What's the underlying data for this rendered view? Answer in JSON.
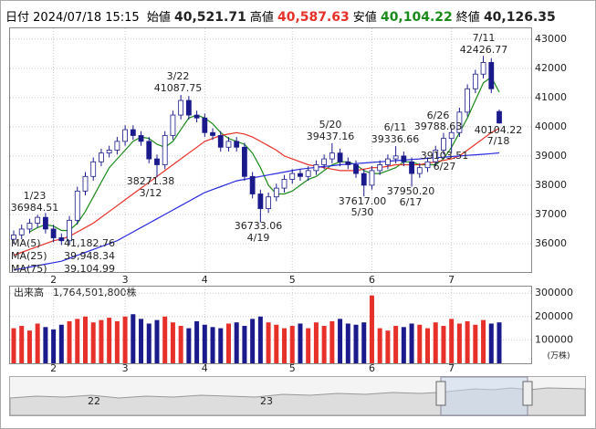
{
  "header": {
    "date_label": "日付",
    "date": "2024/07/18 15:15",
    "fields": [
      {
        "label": "始値",
        "value": "40,521.71",
        "color": "#222222"
      },
      {
        "label": "高値",
        "value": "40,587.63",
        "color": "#e8302a"
      },
      {
        "label": "安値",
        "value": "40,104.22",
        "color": "#1a8a1a"
      },
      {
        "label": "終値",
        "value": "40,126.35",
        "color": "#222222"
      }
    ]
  },
  "chart_data": {
    "type": "candlestick",
    "categories": [
      null,
      null,
      null,
      null,
      null,
      "2",
      null,
      null,
      null,
      null,
      null,
      null,
      null,
      null,
      "3",
      null,
      null,
      null,
      null,
      null,
      null,
      null,
      null,
      null,
      "4",
      null,
      null,
      null,
      null,
      null,
      null,
      null,
      null,
      null,
      null,
      "5",
      null,
      null,
      null,
      null,
      null,
      null,
      null,
      null,
      null,
      "6",
      null,
      null,
      null,
      null,
      null,
      null,
      null,
      null,
      null,
      "7",
      null,
      null,
      null,
      null,
      null,
      null
    ],
    "open": [
      36150,
      36300,
      36500,
      36700,
      36900,
      36500,
      36200,
      36100,
      36800,
      37800,
      38300,
      38800,
      39100,
      39200,
      39500,
      39900,
      39700,
      39500,
      38900,
      38700,
      39700,
      40400,
      40900,
      40400,
      40300,
      39800,
      39700,
      39300,
      39500,
      39300,
      38300,
      37700,
      37200,
      37600,
      37900,
      38200,
      38400,
      38300,
      38500,
      38700,
      38900,
      39100,
      38800,
      38700,
      38400,
      38000,
      38500,
      38700,
      38900,
      39000,
      38800,
      38400,
      38600,
      38800,
      39200,
      39600,
      39800,
      40500,
      41300,
      41800,
      42200,
      40521.71
    ],
    "high": [
      36450,
      36650,
      36850,
      36984.51,
      37050,
      36650,
      36350,
      36950,
      37950,
      38450,
      38950,
      39250,
      39350,
      39650,
      40050,
      40050,
      39850,
      39650,
      39050,
      39850,
      40550,
      41087.75,
      41050,
      40550,
      40450,
      39950,
      39850,
      39650,
      39650,
      39450,
      38450,
      37850,
      37750,
      38050,
      38350,
      38550,
      38550,
      38650,
      38850,
      39050,
      39437.16,
      39250,
      38950,
      38850,
      38550,
      38650,
      38850,
      39050,
      39336.66,
      39150,
      38950,
      38750,
      38950,
      39350,
      39788.63,
      39950,
      40650,
      41450,
      41950,
      42426.77,
      42350,
      40587.63
    ],
    "low": [
      36000,
      36150,
      36350,
      36550,
      36350,
      36050,
      35950,
      35950,
      36650,
      37650,
      38150,
      38650,
      38950,
      39050,
      39350,
      39550,
      39350,
      38750,
      38271.38,
      38550,
      39550,
      40250,
      40250,
      40150,
      39650,
      39550,
      39150,
      39150,
      39150,
      38150,
      37550,
      36733.06,
      37050,
      37450,
      37750,
      38050,
      38150,
      38150,
      38350,
      38550,
      38750,
      38650,
      38550,
      38250,
      37617,
      37850,
      38350,
      38550,
      38750,
      38650,
      37950.2,
      38250,
      38450,
      38650,
      39050,
      39103.51,
      39650,
      40350,
      41150,
      41650,
      41150,
      40104.22
    ],
    "close": [
      36300,
      36500,
      36700,
      36900,
      36500,
      36200,
      36100,
      36800,
      37800,
      38300,
      38800,
      39100,
      39200,
      39500,
      39900,
      39700,
      39500,
      38900,
      38700,
      39700,
      40400,
      40900,
      40400,
      40300,
      39800,
      39700,
      39300,
      39500,
      39300,
      38300,
      37700,
      37200,
      37600,
      37900,
      38200,
      38400,
      38300,
      38500,
      38700,
      38900,
      39100,
      38800,
      38700,
      38400,
      38000,
      38500,
      38700,
      38900,
      39000,
      38800,
      38400,
      38600,
      38800,
      39200,
      39600,
      39800,
      40500,
      41300,
      41800,
      42200,
      41300,
      40126.35
    ],
    "up_color": "#ffffff",
    "down_color": "#1a1a8c",
    "edge_color": "#1a1a8c",
    "ylim": [
      35030,
      43400
    ],
    "yticks": [
      36000,
      37000,
      38000,
      39000,
      40000,
      41000,
      42000,
      43000
    ],
    "grid": true,
    "series": [
      {
        "name": "MA(5)",
        "color": "#1a8a1a",
        "latest_label": "41,182.76",
        "values": [
          null,
          null,
          36400,
          36550,
          36650,
          36600,
          36450,
          36450,
          36700,
          37100,
          37600,
          38100,
          38600,
          38900,
          39200,
          39500,
          39650,
          39600,
          39400,
          39300,
          39500,
          39900,
          40300,
          40400,
          40300,
          40100,
          39800,
          39600,
          39500,
          39400,
          39100,
          38600,
          38000,
          37700,
          37700,
          37800,
          38000,
          38200,
          38300,
          38500,
          38700,
          38800,
          38800,
          38700,
          38500,
          38400,
          38400,
          38500,
          38600,
          38800,
          38800,
          38700,
          38700,
          38700,
          38900,
          39300,
          39800,
          40300,
          40900,
          41500,
          41700,
          41182.76
        ]
      },
      {
        "name": "MA(25)",
        "color": "#e8302a",
        "latest_label": "39,948.34",
        "values": [
          35600,
          35700,
          35800,
          35900,
          36000,
          36100,
          36150,
          36250,
          36400,
          36550,
          36700,
          36900,
          37100,
          37300,
          37500,
          37700,
          37900,
          38100,
          38300,
          38500,
          38700,
          38900,
          39100,
          39300,
          39500,
          39600,
          39700,
          39750,
          39800,
          39750,
          39650,
          39500,
          39350,
          39200,
          39000,
          38900,
          38800,
          38700,
          38650,
          38600,
          38550,
          38500,
          38500,
          38500,
          38550,
          38600,
          38600,
          38650,
          38700,
          38700,
          38700,
          38700,
          38750,
          38800,
          38850,
          38900,
          39000,
          39200,
          39400,
          39600,
          39800,
          39948.34
        ]
      },
      {
        "name": "MA(75)",
        "color": "#2a2ae0",
        "latest_label": "39,104.99",
        "values": [
          35100,
          35150,
          35200,
          35250,
          35300,
          35350,
          35400,
          35500,
          35600,
          35700,
          35800,
          35900,
          36000,
          36100,
          36250,
          36400,
          36550,
          36700,
          36850,
          37000,
          37150,
          37300,
          37450,
          37600,
          37750,
          37850,
          37950,
          38050,
          38150,
          38200,
          38250,
          38300,
          38350,
          38400,
          38450,
          38500,
          38550,
          38580,
          38610,
          38640,
          38670,
          38700,
          38720,
          38740,
          38760,
          38780,
          38800,
          38820,
          38840,
          38860,
          38880,
          38900,
          38920,
          38940,
          38960,
          38980,
          39000,
          39020,
          39040,
          39060,
          39080,
          39104.99
        ]
      }
    ],
    "annotations": [
      {
        "date": "1/23",
        "price": 36984.51,
        "price_label": "36984.51"
      },
      {
        "date": "3/22",
        "price": 41087.75,
        "price_label": "41087.75"
      },
      {
        "date": "3/12",
        "price": 38271.38,
        "price_label": "38271.38"
      },
      {
        "date": "4/19",
        "price": 36733.06,
        "price_label": "36733.06"
      },
      {
        "date": "5/20",
        "price": 39437.16,
        "price_label": "39437.16"
      },
      {
        "date": "5/30",
        "price": 37617,
        "price_label": "37617.00"
      },
      {
        "date": "6/11",
        "price": 39336.66,
        "price_label": "39336.66"
      },
      {
        "date": "6/17",
        "price": 37950.2,
        "price_label": "37950.20"
      },
      {
        "date": "6/26",
        "price": 39788.63,
        "price_label": "39788.63"
      },
      {
        "date": "6/27",
        "price": 39103.51,
        "price_label": "39103.51"
      },
      {
        "date": "7/11",
        "price": 42426.77,
        "price_label": "42426.77"
      },
      {
        "date": "7/18",
        "price": 40104.22,
        "price_label": "40104.22"
      }
    ],
    "volume": {
      "title": "出来高",
      "total_label": "1,764,501,800株",
      "unit": "(万株)",
      "up_color": "#e8302a",
      "down_color": "#1a1a8c",
      "values": [
        150000,
        160000,
        140000,
        170000,
        155000,
        145000,
        165000,
        180000,
        190000,
        200000,
        175000,
        185000,
        195000,
        180000,
        200000,
        210000,
        190000,
        170000,
        185000,
        200000,
        175000,
        160000,
        150000,
        180000,
        165000,
        155000,
        150000,
        170000,
        175000,
        160000,
        190000,
        200000,
        175000,
        165000,
        150000,
        160000,
        170000,
        150000,
        175000,
        160000,
        180000,
        190000,
        170000,
        165000,
        175000,
        290000,
        150000,
        140000,
        160000,
        155000,
        170000,
        165000,
        150000,
        175000,
        160000,
        190000,
        170000,
        180000,
        165000,
        185000,
        170000,
        175000
      ],
      "ylim": [
        0,
        332000
      ],
      "yticks": [
        100000,
        200000,
        300000
      ]
    },
    "navigator_labels": [
      "22",
      "23"
    ]
  }
}
